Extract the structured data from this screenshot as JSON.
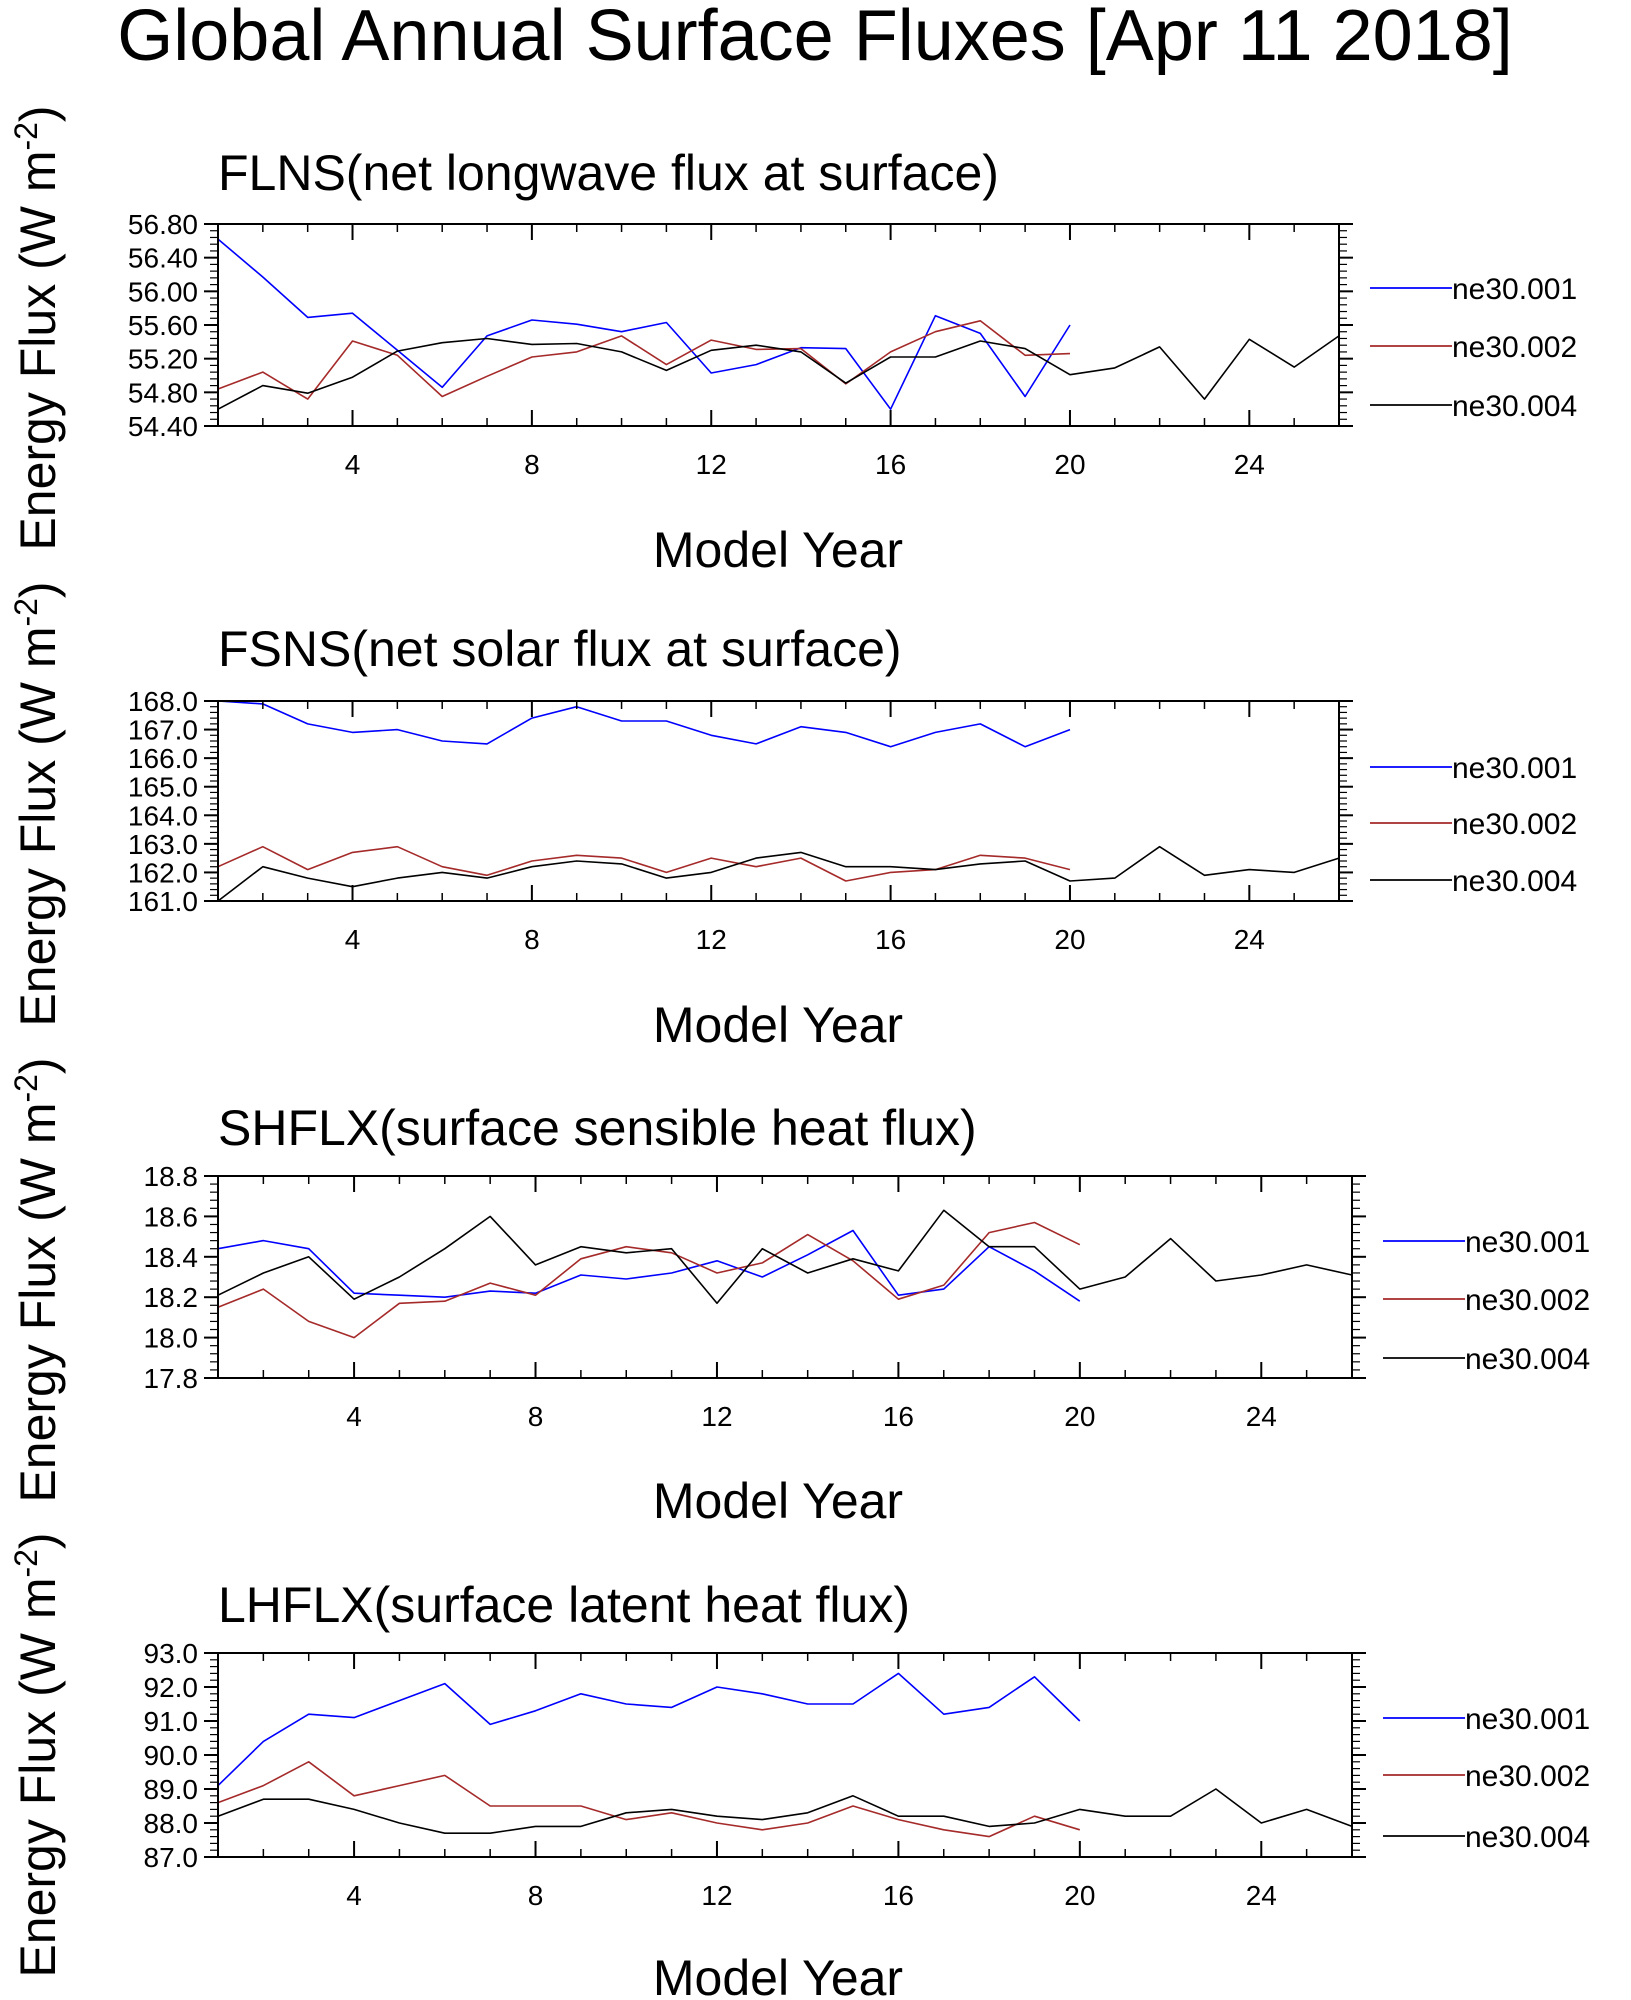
{
  "figure_title": "Global Annual Surface Fluxes [Apr 11 2018]",
  "colors": {
    "ne30.001": "#0000ff",
    "ne30.002": "#a52a2a",
    "ne30.004": "#000000"
  },
  "chart_data": [
    {
      "type": "line",
      "title": "FLNS(net longwave flux at surface)",
      "xlabel": "Model Year",
      "ylabel": "Energy Flux (W m-2)",
      "xlim": [
        1,
        26
      ],
      "ylim": [
        54.4,
        56.8
      ],
      "xticks": [
        4,
        8,
        12,
        16,
        20,
        24
      ],
      "yticks": [
        54.4,
        54.8,
        55.2,
        55.6,
        56.0,
        56.4,
        56.8
      ],
      "ytick_labels": [
        "54.40",
        "54.80",
        "55.20",
        "55.60",
        "56.00",
        "56.40",
        "56.80"
      ],
      "series": [
        {
          "name": "ne30.001",
          "x": [
            1,
            2,
            3,
            4,
            5,
            6,
            7,
            8,
            9,
            10,
            11,
            12,
            13,
            14,
            15,
            16,
            17,
            18,
            19,
            20
          ],
          "values": [
            56.62,
            56.17,
            55.69,
            55.74,
            55.3,
            54.86,
            55.47,
            55.66,
            55.61,
            55.52,
            55.63,
            55.03,
            55.13,
            55.33,
            55.32,
            54.6,
            55.71,
            55.5,
            54.75,
            55.6
          ]
        },
        {
          "name": "ne30.002",
          "x": [
            1,
            2,
            3,
            4,
            5,
            6,
            7,
            8,
            9,
            10,
            11,
            12,
            13,
            14,
            15,
            16,
            17,
            18,
            19,
            20
          ],
          "values": [
            54.84,
            55.04,
            54.72,
            55.41,
            55.24,
            54.75,
            54.99,
            55.22,
            55.28,
            55.47,
            55.13,
            55.42,
            55.31,
            55.32,
            54.9,
            55.28,
            55.52,
            55.65,
            55.24,
            55.26
          ]
        },
        {
          "name": "ne30.004",
          "x": [
            1,
            2,
            3,
            4,
            5,
            6,
            7,
            8,
            9,
            10,
            11,
            12,
            13,
            14,
            15,
            16,
            17,
            18,
            19,
            20,
            21,
            22,
            23,
            24,
            25,
            26
          ],
          "values": [
            54.6,
            54.88,
            54.79,
            54.98,
            55.29,
            55.39,
            55.44,
            55.37,
            55.38,
            55.28,
            55.06,
            55.3,
            55.36,
            55.28,
            54.91,
            55.22,
            55.22,
            55.41,
            55.32,
            55.01,
            55.09,
            55.34,
            54.72,
            55.43,
            55.1,
            55.47
          ]
        }
      ]
    },
    {
      "type": "line",
      "title": "FSNS(net solar flux at surface)",
      "xlabel": "Model Year",
      "ylabel": "Energy Flux (W m-2)",
      "xlim": [
        1,
        26
      ],
      "ylim": [
        161.0,
        168.0
      ],
      "xticks": [
        4,
        8,
        12,
        16,
        20,
        24
      ],
      "yticks": [
        161,
        162,
        163,
        164,
        165,
        166,
        167,
        168
      ],
      "ytick_labels": [
        "161.0",
        "162.0",
        "163.0",
        "164.0",
        "165.0",
        "166.0",
        "167.0",
        "168.0"
      ],
      "series": [
        {
          "name": "ne30.001",
          "x": [
            1,
            2,
            3,
            4,
            5,
            6,
            7,
            8,
            9,
            10,
            11,
            12,
            13,
            14,
            15,
            16,
            17,
            18,
            19,
            20
          ],
          "values": [
            168.0,
            167.9,
            167.2,
            166.9,
            167.0,
            166.6,
            166.5,
            167.4,
            167.8,
            167.3,
            167.3,
            166.8,
            166.5,
            167.1,
            166.9,
            166.4,
            166.9,
            167.2,
            166.4,
            167.0
          ]
        },
        {
          "name": "ne30.002",
          "x": [
            1,
            2,
            3,
            4,
            5,
            6,
            7,
            8,
            9,
            10,
            11,
            12,
            13,
            14,
            15,
            16,
            17,
            18,
            19,
            20
          ],
          "values": [
            162.2,
            162.9,
            162.1,
            162.7,
            162.9,
            162.2,
            161.9,
            162.4,
            162.6,
            162.5,
            162.0,
            162.5,
            162.2,
            162.5,
            161.7,
            162.0,
            162.1,
            162.6,
            162.5,
            162.1
          ]
        },
        {
          "name": "ne30.004",
          "x": [
            1,
            2,
            3,
            4,
            5,
            6,
            7,
            8,
            9,
            10,
            11,
            12,
            13,
            14,
            15,
            16,
            17,
            18,
            19,
            20,
            21,
            22,
            23,
            24,
            25,
            26
          ],
          "values": [
            161.0,
            162.2,
            161.8,
            161.5,
            161.8,
            162.0,
            161.8,
            162.2,
            162.4,
            162.3,
            161.8,
            162.0,
            162.5,
            162.7,
            162.2,
            162.2,
            162.1,
            162.3,
            162.4,
            161.7,
            161.8,
            162.9,
            161.9,
            162.1,
            162.0,
            162.5
          ]
        }
      ]
    },
    {
      "type": "line",
      "title": "SHFLX(surface sensible heat flux)",
      "xlabel": "Model Year",
      "ylabel": "Energy Flux (W m-2)",
      "xlim": [
        1,
        26
      ],
      "ylim": [
        17.8,
        18.8
      ],
      "xticks": [
        4,
        8,
        12,
        16,
        20,
        24
      ],
      "yticks": [
        17.8,
        18.0,
        18.2,
        18.4,
        18.6,
        18.8
      ],
      "ytick_labels": [
        "17.8",
        "18.0",
        "18.2",
        "18.4",
        "18.6",
        "18.8"
      ],
      "series": [
        {
          "name": "ne30.001",
          "x": [
            1,
            2,
            3,
            4,
            5,
            6,
            7,
            8,
            9,
            10,
            11,
            12,
            13,
            14,
            15,
            16,
            17,
            18,
            19,
            20
          ],
          "values": [
            18.44,
            18.48,
            18.44,
            18.22,
            18.21,
            18.2,
            18.23,
            18.22,
            18.31,
            18.29,
            18.32,
            18.38,
            18.3,
            18.41,
            18.53,
            18.21,
            18.24,
            18.45,
            18.33,
            18.18
          ]
        },
        {
          "name": "ne30.002",
          "x": [
            1,
            2,
            3,
            4,
            5,
            6,
            7,
            8,
            9,
            10,
            11,
            12,
            13,
            14,
            15,
            16,
            17,
            18,
            19,
            20
          ],
          "values": [
            18.15,
            18.24,
            18.08,
            18.0,
            18.17,
            18.18,
            18.27,
            18.21,
            18.39,
            18.45,
            18.42,
            18.32,
            18.37,
            18.51,
            18.38,
            18.19,
            18.26,
            18.52,
            18.57,
            18.46
          ]
        },
        {
          "name": "ne30.004",
          "x": [
            1,
            2,
            3,
            4,
            5,
            6,
            7,
            8,
            9,
            10,
            11,
            12,
            13,
            14,
            15,
            16,
            17,
            18,
            19,
            20,
            21,
            22,
            23,
            24,
            25,
            26
          ],
          "values": [
            18.21,
            18.32,
            18.4,
            18.19,
            18.3,
            18.44,
            18.6,
            18.36,
            18.45,
            18.42,
            18.44,
            18.17,
            18.44,
            18.32,
            18.39,
            18.33,
            18.63,
            18.45,
            18.45,
            18.24,
            18.3,
            18.49,
            18.28,
            18.31,
            18.36,
            18.31
          ]
        }
      ]
    },
    {
      "type": "line",
      "title": "LHFLX(surface latent heat flux)",
      "xlabel": "Model Year",
      "ylabel": "Energy Flux (W m-2)",
      "xlim": [
        1,
        26
      ],
      "ylim": [
        87.0,
        93.0
      ],
      "xticks": [
        4,
        8,
        12,
        16,
        20,
        24
      ],
      "yticks": [
        87,
        88,
        89,
        90,
        91,
        92,
        93
      ],
      "ytick_labels": [
        "87.0",
        "88.0",
        "89.0",
        "90.0",
        "91.0",
        "92.0",
        "93.0"
      ],
      "series": [
        {
          "name": "ne30.001",
          "x": [
            1,
            2,
            3,
            4,
            5,
            6,
            7,
            8,
            9,
            10,
            11,
            12,
            13,
            14,
            15,
            16,
            17,
            18,
            19,
            20
          ],
          "values": [
            89.1,
            90.4,
            91.2,
            91.1,
            91.6,
            92.1,
            90.9,
            91.3,
            91.8,
            91.5,
            91.4,
            92.0,
            91.8,
            91.5,
            91.5,
            92.4,
            91.2,
            91.4,
            92.3,
            91.0
          ]
        },
        {
          "name": "ne30.002",
          "x": [
            1,
            2,
            3,
            4,
            5,
            6,
            7,
            8,
            9,
            10,
            11,
            12,
            13,
            14,
            15,
            16,
            17,
            18,
            19,
            20
          ],
          "values": [
            88.6,
            89.1,
            89.8,
            88.8,
            89.1,
            89.4,
            88.5,
            88.5,
            88.5,
            88.1,
            88.3,
            88.0,
            87.8,
            88.0,
            88.5,
            88.1,
            87.8,
            87.6,
            88.2,
            87.8
          ]
        },
        {
          "name": "ne30.004",
          "x": [
            1,
            2,
            3,
            4,
            5,
            6,
            7,
            8,
            9,
            10,
            11,
            12,
            13,
            14,
            15,
            16,
            17,
            18,
            19,
            20,
            21,
            22,
            23,
            24,
            25,
            26
          ],
          "values": [
            88.2,
            88.7,
            88.7,
            88.4,
            88.0,
            87.7,
            87.7,
            87.9,
            87.9,
            88.3,
            88.4,
            88.2,
            88.1,
            88.3,
            88.8,
            88.2,
            88.2,
            87.9,
            88.0,
            88.4,
            88.2,
            88.2,
            89.0,
            88.0,
            88.4,
            87.9
          ]
        }
      ]
    }
  ]
}
